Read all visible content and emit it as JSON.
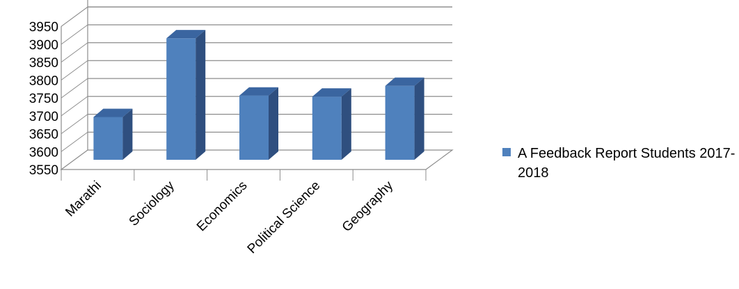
{
  "chart_data": {
    "type": "bar",
    "categories": [
      "Marathi",
      "Sociology",
      "Economics",
      "Political Science",
      "Geography"
    ],
    "series": [
      {
        "name": "A Feedback Report Students 2017-2018",
        "values": [
          3685,
          3905,
          3745,
          3742,
          3772
        ]
      }
    ],
    "yticks": [
      3550,
      3600,
      3650,
      3700,
      3750,
      3800,
      3850,
      3900,
      3950
    ],
    "ylim": [
      3550,
      3950
    ],
    "grid": true,
    "legend_position": "right",
    "bar_style": "3d-column",
    "colors": {
      "bar_front": "#4f81bd",
      "bar_side": "#2f4f7f",
      "bar_top": "#3a65a0",
      "grid": "#8c8c8c"
    }
  }
}
